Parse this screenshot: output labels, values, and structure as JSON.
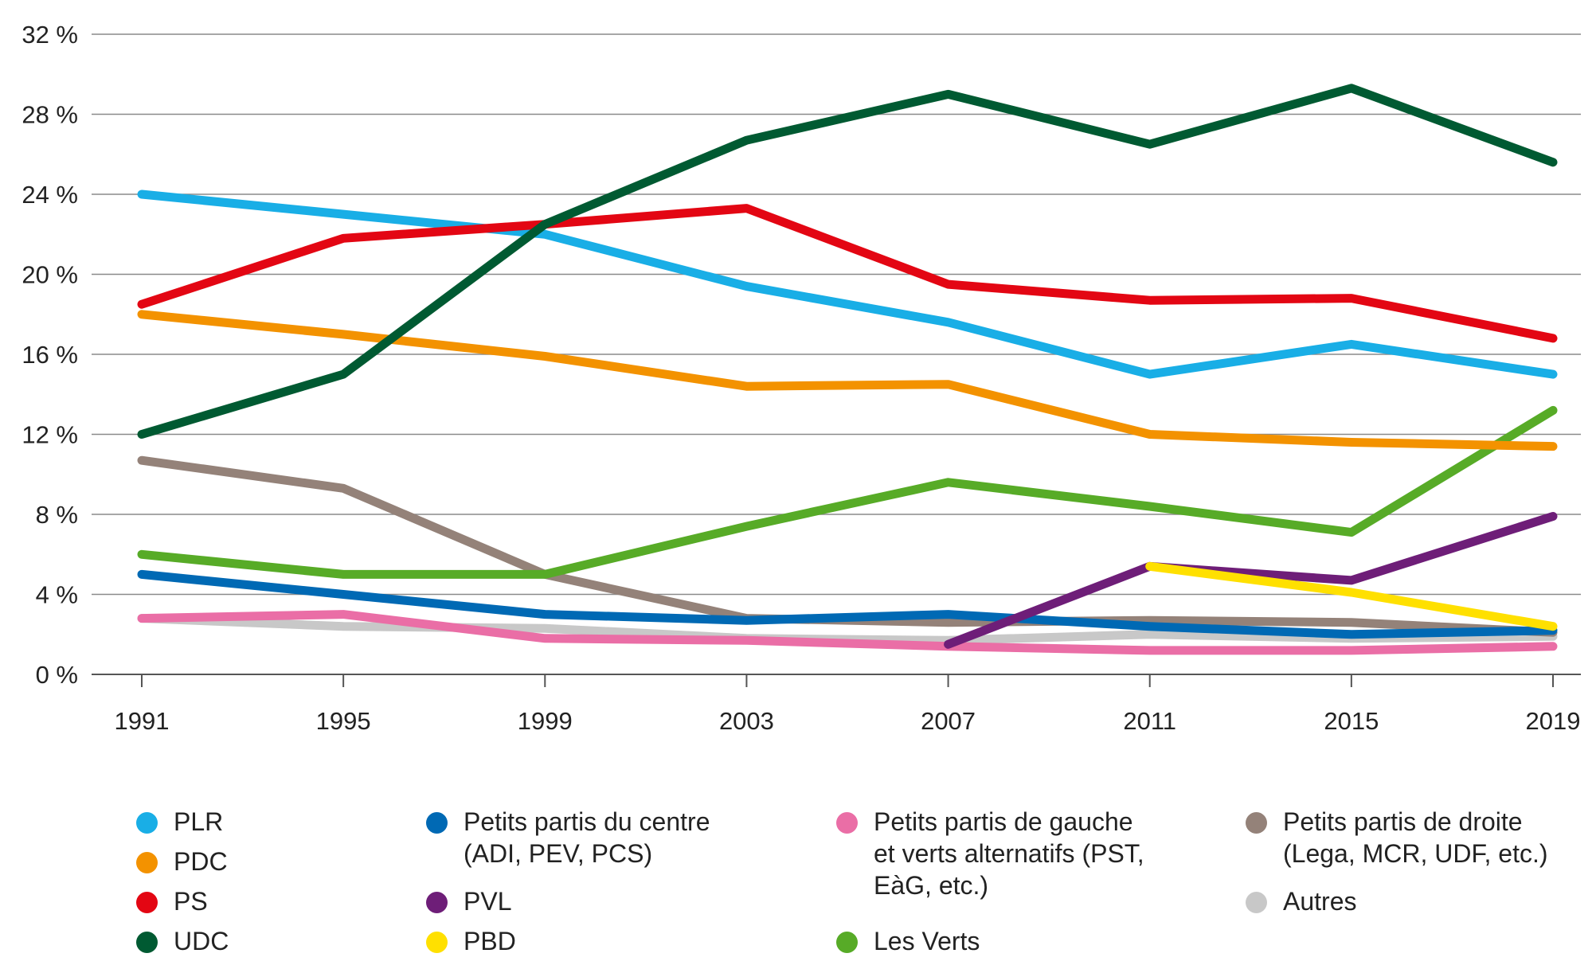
{
  "chart_data": {
    "type": "line",
    "x": [
      "1991",
      "1995",
      "1999",
      "2003",
      "2007",
      "2011",
      "2015",
      "2019"
    ],
    "y_ticks": [
      "0 %",
      "4 %",
      "8 %",
      "12 %",
      "16 %",
      "20 %",
      "24 %",
      "28 %",
      "32 %"
    ],
    "ylim": [
      0,
      32
    ],
    "grid": true,
    "legend_position": "bottom",
    "series": [
      {
        "name": "PLR",
        "color": "#19aee6",
        "values": [
          24.0,
          23.0,
          22.0,
          19.4,
          17.6,
          15.0,
          16.5,
          15.0
        ]
      },
      {
        "name": "PDC",
        "color": "#f39200",
        "values": [
          18.0,
          17.0,
          15.9,
          14.4,
          14.5,
          12.0,
          11.6,
          11.4
        ]
      },
      {
        "name": "PS",
        "color": "#e30613",
        "values": [
          18.5,
          21.8,
          22.5,
          23.3,
          19.5,
          18.7,
          18.8,
          16.8
        ]
      },
      {
        "name": "UDC",
        "color": "#005a32",
        "values": [
          12.0,
          15.0,
          22.5,
          26.7,
          29.0,
          26.5,
          29.3,
          25.6
        ]
      },
      {
        "name": "Petits partis du centre\n(ADI, PEV, PCS)",
        "color": "#0069b4",
        "values": [
          5.0,
          4.0,
          3.0,
          2.7,
          3.0,
          2.4,
          2.0,
          2.2
        ]
      },
      {
        "name": "PVL",
        "color": "#6e1e78",
        "values": [
          null,
          null,
          null,
          null,
          1.5,
          5.4,
          4.7,
          7.9
        ]
      },
      {
        "name": "PBD",
        "color": "#ffe000",
        "values": [
          null,
          null,
          null,
          null,
          null,
          5.4,
          4.1,
          2.4
        ]
      },
      {
        "name": "Petits partis de gauche\net verts alternatifs (PST,\nEàG, etc.)",
        "color": "#ea6ea6",
        "values": [
          2.8,
          3.0,
          1.8,
          1.7,
          1.4,
          1.2,
          1.2,
          1.4
        ]
      },
      {
        "name": "Les Verts",
        "color": "#57ab27",
        "values": [
          6.0,
          5.0,
          5.0,
          7.4,
          9.6,
          8.4,
          7.1,
          13.2
        ]
      },
      {
        "name": "Petits partis de droite\n(Lega, MCR, UDF, etc.)",
        "color": "#948279",
        "values": [
          10.7,
          9.3,
          5.0,
          2.8,
          2.6,
          2.7,
          2.6,
          2.1
        ]
      },
      {
        "name": "Autres",
        "color": "#c8c8c8",
        "values": [
          2.8,
          2.4,
          2.3,
          1.8,
          1.7,
          2.0,
          1.8,
          1.9
        ]
      }
    ]
  }
}
